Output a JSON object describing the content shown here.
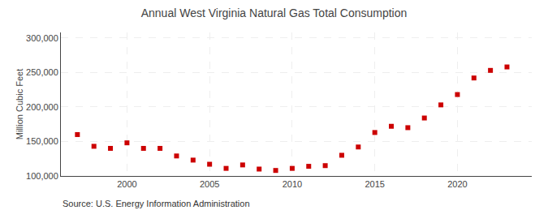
{
  "chart_data": {
    "type": "scatter",
    "title": "Annual West Virginia Natural Gas Total Consumption",
    "ylabel": "Million Cubic Feet",
    "annotations": [
      "Source: U.S. Energy Information Administration"
    ],
    "x": [
      1997,
      1998,
      1999,
      2000,
      2001,
      2002,
      2003,
      2004,
      2005,
      2006,
      2007,
      2008,
      2009,
      2010,
      2011,
      2012,
      2013,
      2014,
      2015,
      2016,
      2017,
      2018,
      2019,
      2020,
      2021,
      2022,
      2023
    ],
    "values": [
      160000,
      143000,
      140000,
      148000,
      140000,
      140000,
      129000,
      123000,
      117000,
      111000,
      116000,
      110000,
      108000,
      111000,
      114000,
      115000,
      130000,
      142000,
      163000,
      172000,
      170000,
      184000,
      203000,
      218000,
      242000,
      253000,
      258000
    ],
    "color": "#cc0000",
    "marker": "square",
    "xlim": [
      1996.0,
      2024.5
    ],
    "xticks": [
      2000,
      2005,
      2010,
      2015,
      2020
    ],
    "ylim": [
      100000,
      308000
    ],
    "yticks": [
      {
        "value": 100000,
        "label": "100,000"
      },
      {
        "value": 150000,
        "label": "150,000"
      },
      {
        "value": 200000,
        "label": "200,000"
      },
      {
        "value": 250000,
        "label": "250,000"
      },
      {
        "value": 300000,
        "label": "300,000"
      }
    ],
    "grid": true
  }
}
